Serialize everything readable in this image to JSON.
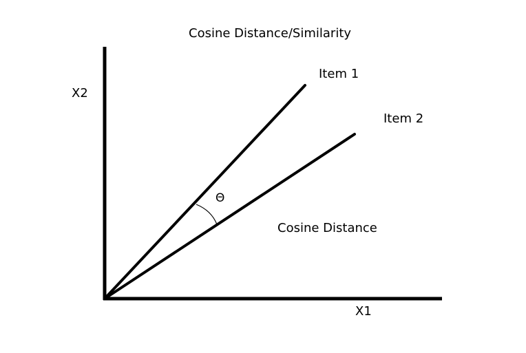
{
  "title": "Cosine Distance/Similarity",
  "axes": {
    "x_label": "X1",
    "y_label": "X2"
  },
  "vectors": [
    {
      "label": "Item 1"
    },
    {
      "label": "Item 2"
    }
  ],
  "angle_symbol": "Θ",
  "angle_caption": "Cosine Distance",
  "colors": {
    "ink": "#000000",
    "background": "#ffffff"
  }
}
